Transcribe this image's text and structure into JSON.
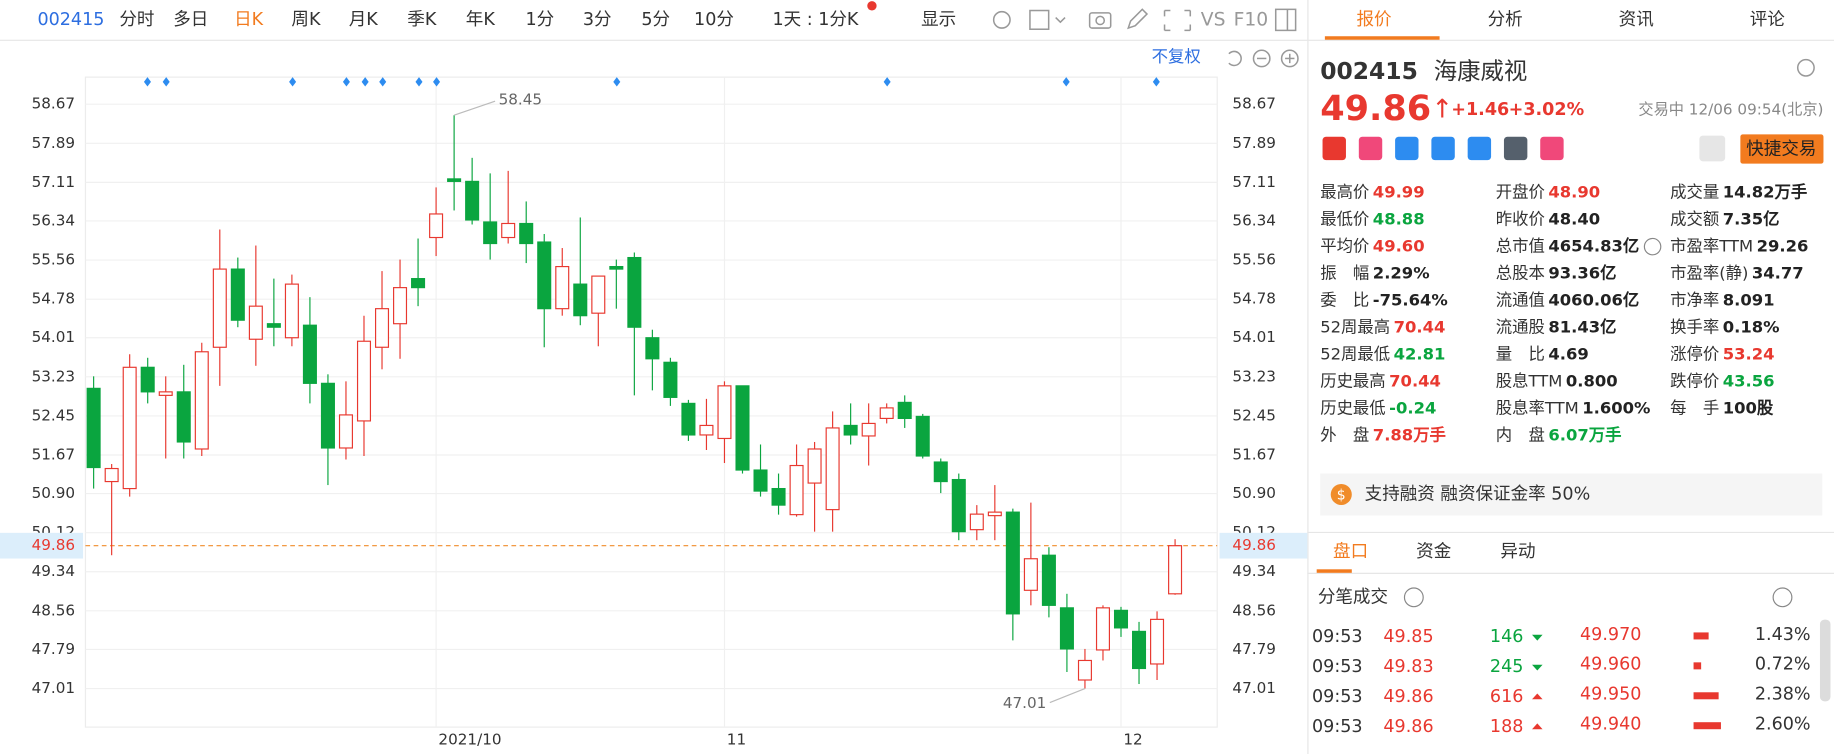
{
  "toolbar": {
    "code": "002415",
    "tabs": [
      "分时",
      "多日",
      "日K",
      "周K",
      "月K",
      "季K",
      "年K",
      "1分",
      "3分",
      "5分",
      "10分"
    ],
    "active_tab": 2,
    "period": "1天 : 1分K",
    "display": "显示",
    "vs": "VS",
    "f10": "F10",
    "adjust": "不复权"
  },
  "chart_data": {
    "type": "candlestick",
    "categories": [
      null,
      null,
      null,
      null,
      null,
      null,
      null,
      null,
      null,
      null,
      null,
      null,
      null,
      null,
      null,
      null,
      null,
      null,
      null,
      "2021/10",
      null,
      null,
      null,
      null,
      null,
      null,
      null,
      null,
      null,
      null,
      null,
      null,
      null,
      null,
      null,
      "11",
      null,
      null,
      null,
      null,
      null,
      null,
      null,
      null,
      null,
      null,
      null,
      null,
      null,
      null,
      null,
      null,
      null,
      null,
      null,
      null,
      null,
      "12",
      null,
      null,
      null
    ],
    "open": [
      53.0,
      51.14,
      51.0,
      53.42,
      52.86,
      52.93,
      51.79,
      53.82,
      55.38,
      53.98,
      54.29,
      54.01,
      54.26,
      53.1,
      51.81,
      52.35,
      53.82,
      54.29,
      55.19,
      56.01,
      57.18,
      57.13,
      56.32,
      56.01,
      56.29,
      55.92,
      54.59,
      55.08,
      54.5,
      55.43,
      55.61,
      54.01,
      53.52,
      52.7,
      52.07,
      52.0,
      53.05,
      51.37,
      51.0,
      50.48,
      51.11,
      50.58,
      52.26,
      52.05,
      52.4,
      52.72,
      52.44,
      51.53,
      51.18,
      50.18,
      50.46,
      50.53,
      48.97,
      49.67,
      48.62,
      47.18,
      47.78,
      48.57,
      48.15,
      47.5,
      48.9
    ],
    "high": [
      53.24,
      51.49,
      53.68,
      53.61,
      53.24,
      53.47,
      53.91,
      56.17,
      55.61,
      55.85,
      55.19,
      55.27,
      54.82,
      53.28,
      53.14,
      54.45,
      55.34,
      55.57,
      55.99,
      57.01,
      58.45,
      57.6,
      57.29,
      57.34,
      56.73,
      56.08,
      55.8,
      56.41,
      55.24,
      55.57,
      55.71,
      54.17,
      53.61,
      52.77,
      52.79,
      53.14,
      53.05,
      51.88,
      51.3,
      51.88,
      51.93,
      52.54,
      52.7,
      52.7,
      52.7,
      52.86,
      52.49,
      51.6,
      51.3,
      50.67,
      51.07,
      50.6,
      50.72,
      49.83,
      48.9,
      47.8,
      48.67,
      48.64,
      48.34,
      48.55,
      49.99
    ],
    "low": [
      51.0,
      49.67,
      50.84,
      52.7,
      51.6,
      51.6,
      51.65,
      53.05,
      54.22,
      53.45,
      53.84,
      53.84,
      52.7,
      51.07,
      51.58,
      51.65,
      53.38,
      53.59,
      54.64,
      55.64,
      56.55,
      56.27,
      55.57,
      55.89,
      55.5,
      53.82,
      54.45,
      54.26,
      53.84,
      54.59,
      52.86,
      52.96,
      52.65,
      51.95,
      51.77,
      51.51,
      51.3,
      50.84,
      50.48,
      50.44,
      50.14,
      50.14,
      51.88,
      51.46,
      52.3,
      52.21,
      51.6,
      50.91,
      49.97,
      49.97,
      49.97,
      47.97,
      48.67,
      48.43,
      47.34,
      47.01,
      47.57,
      48.04,
      47.1,
      47.18,
      48.88
    ],
    "close": [
      51.42,
      51.4,
      53.42,
      52.93,
      52.93,
      51.93,
      53.73,
      55.38,
      54.36,
      54.64,
      54.22,
      55.08,
      53.1,
      51.81,
      52.47,
      53.94,
      54.59,
      55.01,
      55.01,
      56.48,
      57.13,
      56.36,
      55.89,
      56.29,
      55.89,
      54.59,
      55.43,
      54.45,
      55.24,
      55.38,
      54.22,
      53.59,
      52.82,
      52.07,
      52.26,
      53.05,
      51.37,
      50.95,
      50.67,
      51.46,
      51.79,
      52.21,
      52.07,
      52.3,
      52.61,
      52.4,
      51.65,
      51.14,
      50.14,
      50.49,
      50.53,
      48.5,
      49.6,
      48.67,
      47.8,
      47.57,
      48.62,
      48.22,
      47.41,
      48.39,
      49.86
    ],
    "up_color": "#e8382f",
    "down_color": "#0aa53f",
    "ylim": [
      46.24,
      59.21
    ],
    "yticks": [
      58.67,
      57.89,
      57.11,
      56.34,
      55.56,
      54.78,
      54.01,
      53.23,
      52.45,
      51.67,
      {
        "value": 50.9,
        "label": "50.90"
      },
      50.12,
      49.34,
      48.56,
      47.79,
      47.01
    ],
    "grid": true,
    "last_price": 49.86,
    "last_price_color": "#f08c2a"
  },
  "panel": {
    "tabs": [
      "报价",
      "分析",
      "资讯",
      "评论"
    ],
    "active_tab": 0,
    "code": "002415",
    "name": "海康威视",
    "price": "49.86",
    "change": "+1.46",
    "change_pct": "+3.02%",
    "status": "交易中 12/06 09:54(北京)",
    "trade_button": "快捷交易",
    "stats": [
      [
        {
          "label": "最高价",
          "value": "49.99",
          "color": "#e8382f"
        },
        {
          "label": "开盘价",
          "value": "48.90",
          "color": "#e8382f"
        },
        {
          "label": "成交量",
          "value": "14.82万手"
        }
      ],
      [
        {
          "label": "最低价",
          "value": "48.88",
          "color": "#0aa53f"
        },
        {
          "label": "昨收价",
          "value": "48.40"
        },
        {
          "label": "成交额",
          "value": "7.35亿"
        }
      ],
      [
        {
          "label": "平均价",
          "value": "49.60",
          "color": "#e8382f"
        },
        {
          "label": "总市值",
          "value": "4654.83亿"
        },
        {
          "label": "市盈率TTM",
          "value": "29.26"
        }
      ],
      [
        {
          "label": "振　幅",
          "value": "2.29%"
        },
        {
          "label": "总股本",
          "value": "93.36亿"
        },
        {
          "label": "市盈率(静)",
          "value": "34.77"
        }
      ],
      [
        {
          "label": "委　比",
          "value": "-75.64%"
        },
        {
          "label": "流通值",
          "value": "4060.06亿"
        },
        {
          "label": "市净率",
          "value": "8.091"
        }
      ],
      [
        {
          "label": "52周最高",
          "value": "70.44",
          "color": "#e8382f"
        },
        {
          "label": "流通股",
          "value": "81.43亿"
        },
        {
          "label": "换手率",
          "value": "0.18%"
        }
      ],
      [
        {
          "label": "52周最低",
          "value": "42.81",
          "color": "#0aa53f"
        },
        {
          "label": "量　比",
          "value": "4.69"
        },
        {
          "label": "涨停价",
          "value": "53.24",
          "color": "#e8382f"
        }
      ],
      [
        {
          "label": "历史最高",
          "value": "70.44",
          "color": "#e8382f"
        },
        {
          "label": "股息TTM",
          "value": "0.800"
        },
        {
          "label": "跌停价",
          "value": "43.56",
          "color": "#0aa53f"
        }
      ],
      [
        {
          "label": "历史最低",
          "value": "-0.24",
          "color": "#0aa53f"
        },
        {
          "label": "股息率TTM",
          "value": "1.600%"
        },
        {
          "label": "每　手",
          "value": "100股"
        }
      ],
      [
        {
          "label": "外　盘",
          "value": "7.88万手",
          "color": "#e8382f"
        },
        {
          "label": "内　盘",
          "value": "6.07万手",
          "color": "#0aa53f"
        }
      ]
    ],
    "banner": "支持融资 融资保证金率 50%",
    "sub_tabs": [
      "盘口",
      "资金",
      "异动"
    ],
    "active_sub_tab": 0,
    "ticks_title": "分笔成交",
    "trades": [
      {
        "time": "09:53",
        "price": "49.85",
        "volume": "146",
        "side": "down",
        "order_price": "49.970",
        "order_pct": 1.43,
        "order_pct_label": "1.43%"
      },
      {
        "time": "09:53",
        "price": "49.83",
        "volume": "245",
        "side": "down",
        "order_price": "49.960",
        "order_pct": 0.72,
        "order_pct_label": "0.72%"
      },
      {
        "time": "09:53",
        "price": "49.86",
        "volume": "616",
        "side": "up",
        "order_price": "49.950",
        "order_pct": 2.38,
        "order_pct_label": "2.38%"
      },
      {
        "time": "09:53",
        "price": "49.86",
        "volume": "188",
        "side": "up",
        "order_price": "49.940",
        "order_pct": 2.6,
        "order_pct_label": "2.60%"
      }
    ]
  }
}
